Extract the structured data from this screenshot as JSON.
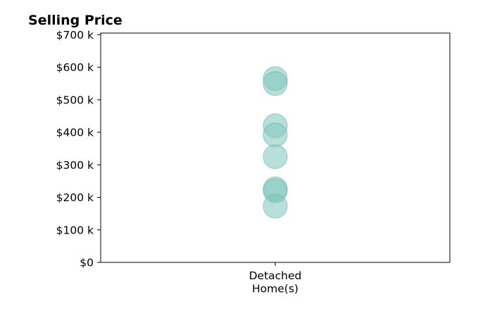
{
  "chart_data": {
    "type": "scatter",
    "title": "Selling Price",
    "xlabel": "",
    "ylabel": "",
    "categories": [
      "Detached\nHome(s)"
    ],
    "series": [
      {
        "category": "Detached\nHome(s)",
        "values": [
          565000,
          550000,
          420000,
          392000,
          325000,
          226000,
          220000,
          173000
        ]
      }
    ],
    "y_ticks": [
      0,
      100000,
      200000,
      300000,
      400000,
      500000,
      600000,
      700000
    ],
    "y_tick_labels": [
      "$0",
      "$100 k",
      "$200 k",
      "$300 k",
      "$400 k",
      "$500 k",
      "$600 k",
      "$700 k"
    ],
    "ylim": [
      0,
      705000
    ],
    "grid": false,
    "marker_color": "#7fc4be",
    "marker_opacity": 0.55
  }
}
